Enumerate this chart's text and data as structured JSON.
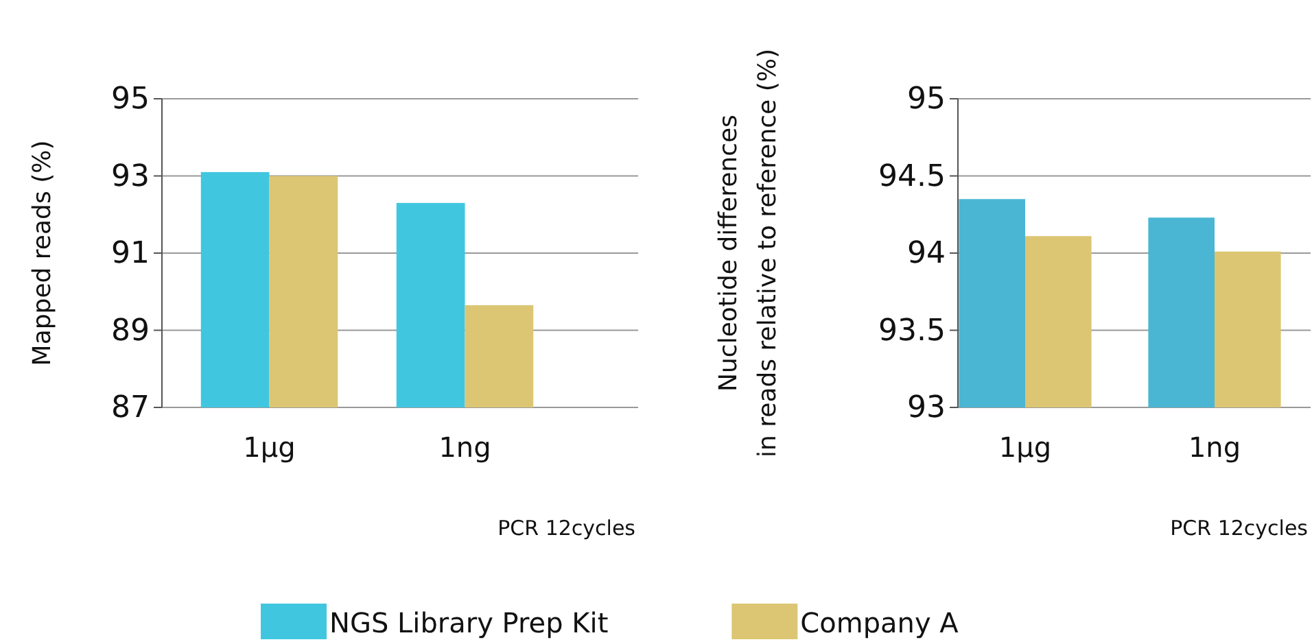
{
  "chart_data": [
    {
      "type": "bar",
      "ylabel": "Mapped reads (%)",
      "xlabel": "PCR 12cycles",
      "categories": [
        "1μg",
        "1ng"
      ],
      "series": [
        {
          "name": "NGS Library Prep Kit",
          "color": "#41c6e0",
          "values": [
            93.1,
            92.3
          ]
        },
        {
          "name": "Company A",
          "color": "#dcc673",
          "values": [
            93.0,
            89.65
          ]
        }
      ],
      "ylim": [
        87,
        95
      ],
      "yticks": [
        87,
        89,
        91,
        93,
        95
      ],
      "grid": "y",
      "legend": "bottom"
    },
    {
      "type": "bar",
      "ylabel": "Nucleotide differences\nin reads relative to reference (%)",
      "xlabel": "PCR 12cycles",
      "categories": [
        "1μg",
        "1ng"
      ],
      "series": [
        {
          "name": "NGS Library Prep Kit",
          "color": "#4ab6d3",
          "values": [
            94.35,
            94.23
          ]
        },
        {
          "name": "Company A",
          "color": "#dcc673",
          "values": [
            94.11,
            94.01
          ]
        }
      ],
      "ylim": [
        93,
        95
      ],
      "yticks": [
        93,
        93.5,
        94,
        94.5,
        95
      ],
      "grid": "y",
      "legend": "bottom"
    }
  ]
}
